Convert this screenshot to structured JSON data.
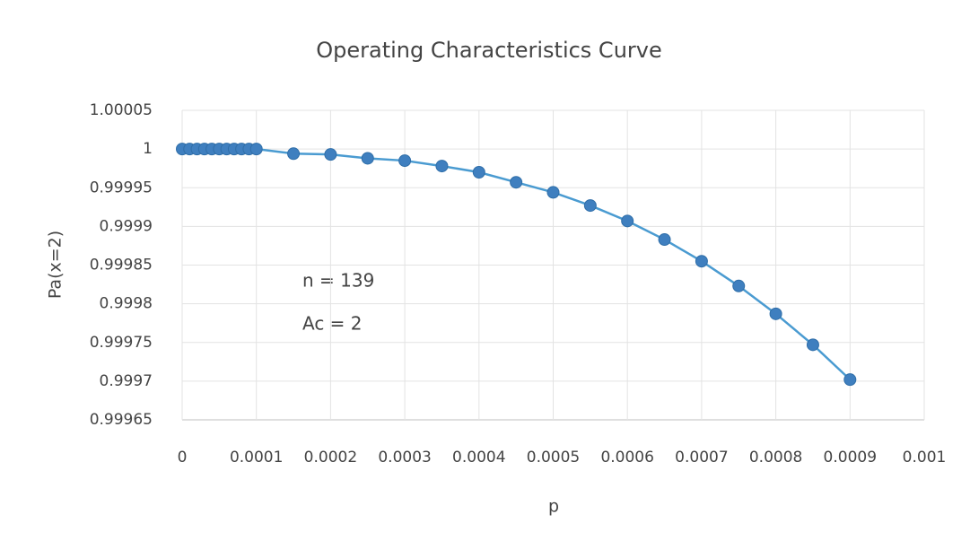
{
  "chart_data": {
    "type": "scatter",
    "title": "Operating Characteristics Curve",
    "x_label": "p",
    "y_label": "Pa(x=2)",
    "annotations": [
      "n = 139",
      "Ac = 2"
    ],
    "x": [
      0,
      1e-05,
      2e-05,
      3e-05,
      4e-05,
      5e-05,
      6e-05,
      7e-05,
      8e-05,
      9e-05,
      0.0001,
      0.00015,
      0.0002,
      0.00025,
      0.0003,
      0.00035,
      0.0004,
      0.00045,
      0.0005,
      0.00055,
      0.0006,
      0.00065,
      0.0007,
      0.00075,
      0.0008,
      0.00085,
      0.0009
    ],
    "series": [
      {
        "color": "#3f7fbf",
        "values": [
          1,
          1,
          1,
          1,
          1,
          1,
          1,
          1,
          1,
          1,
          1,
          0.999994,
          0.999993,
          0.999988,
          0.999985,
          0.999978,
          0.99997,
          0.999957,
          0.999944,
          0.999927,
          0.999907,
          0.999883,
          0.999855,
          0.999823,
          0.999787,
          0.999747,
          0.999702
        ]
      }
    ],
    "xlim": [
      0,
      0.001
    ],
    "xticks": [
      0,
      0.0001,
      0.0002,
      0.0003,
      0.0004,
      0.0005,
      0.0006,
      0.0007,
      0.0008,
      0.0009,
      0.001
    ],
    "ylim": [
      0.99965,
      1.00005
    ],
    "yticks": [
      0.99965,
      0.9997,
      0.99975,
      0.9998,
      0.99985,
      0.9999,
      0.99995,
      1,
      1.00005
    ],
    "grid": true,
    "line_color": "#4a9bd1"
  }
}
